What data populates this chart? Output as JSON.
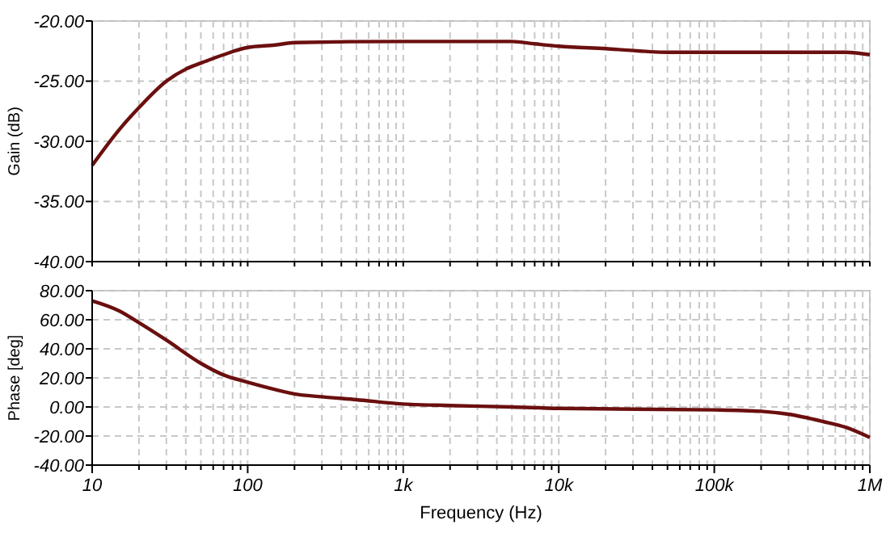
{
  "chart_data": [
    {
      "type": "line",
      "ylabel": "Gain (dB)",
      "log": "x",
      "grid": true,
      "tick_labels": "y",
      "xlim": [
        10,
        1000000
      ],
      "xticks": [
        {
          "value": 10,
          "label": null
        },
        {
          "value": 20,
          "label": null
        },
        {
          "value": 30,
          "label": null
        },
        {
          "value": 40,
          "label": null
        },
        {
          "value": 50,
          "label": null
        },
        {
          "value": 60,
          "label": null
        },
        {
          "value": 70,
          "label": null
        },
        {
          "value": 80,
          "label": null
        },
        {
          "value": 90,
          "label": null
        },
        {
          "value": 100,
          "label": null
        },
        {
          "value": 200,
          "label": null
        },
        {
          "value": 300,
          "label": null
        },
        {
          "value": 400,
          "label": null
        },
        {
          "value": 500,
          "label": null
        },
        {
          "value": 600,
          "label": null
        },
        {
          "value": 700,
          "label": null
        },
        {
          "value": 800,
          "label": null
        },
        {
          "value": 900,
          "label": null
        },
        {
          "value": 1000,
          "label": null
        },
        {
          "value": 2000,
          "label": null
        },
        {
          "value": 3000,
          "label": null
        },
        {
          "value": 4000,
          "label": null
        },
        {
          "value": 5000,
          "label": null
        },
        {
          "value": 6000,
          "label": null
        },
        {
          "value": 7000,
          "label": null
        },
        {
          "value": 8000,
          "label": null
        },
        {
          "value": 9000,
          "label": null
        },
        {
          "value": 10000,
          "label": null
        },
        {
          "value": 20000,
          "label": null
        },
        {
          "value": 30000,
          "label": null
        },
        {
          "value": 40000,
          "label": null
        },
        {
          "value": 50000,
          "label": null
        },
        {
          "value": 60000,
          "label": null
        },
        {
          "value": 70000,
          "label": null
        },
        {
          "value": 80000,
          "label": null
        },
        {
          "value": 90000,
          "label": null
        },
        {
          "value": 100000,
          "label": null
        },
        {
          "value": 200000,
          "label": null
        },
        {
          "value": 300000,
          "label": null
        },
        {
          "value": 400000,
          "label": null
        },
        {
          "value": 500000,
          "label": null
        },
        {
          "value": 600000,
          "label": null
        },
        {
          "value": 700000,
          "label": null
        },
        {
          "value": 800000,
          "label": null
        },
        {
          "value": 900000,
          "label": null
        },
        {
          "value": 1000000,
          "label": null
        }
      ],
      "ylim": [
        -40,
        -20
      ],
      "yticks": [
        {
          "value": -40,
          "label": "-40.00"
        },
        {
          "value": -35,
          "label": "-35.00"
        },
        {
          "value": -30,
          "label": "-30.00"
        },
        {
          "value": -25,
          "label": "-25.00"
        },
        {
          "value": -20,
          "label": "-20.00"
        }
      ],
      "x": [
        10,
        15,
        20,
        30,
        40,
        50,
        70,
        100,
        150,
        200,
        1000,
        5000,
        7000,
        10000,
        20000,
        50000,
        200000,
        700000,
        1000000
      ],
      "series": [
        {
          "color": "#6b0f0f",
          "values": [
            -32,
            -29,
            -27.2,
            -25,
            -24,
            -23.5,
            -22.8,
            -22.2,
            -22,
            -21.8,
            -21.7,
            -21.7,
            -21.9,
            -22.1,
            -22.3,
            -22.6,
            -22.6,
            -22.6,
            -22.8
          ]
        }
      ]
    },
    {
      "type": "line",
      "ylabel": "Phase [deg]",
      "xlabel": "Frequency (Hz)",
      "log": "x",
      "grid": true,
      "xlim": [
        10,
        1000000
      ],
      "xticks": [
        10,
        {
          "value": 20,
          "label": null
        },
        {
          "value": 30,
          "label": null
        },
        {
          "value": 40,
          "label": null
        },
        {
          "value": 50,
          "label": null
        },
        {
          "value": 60,
          "label": null
        },
        {
          "value": 70,
          "label": null
        },
        {
          "value": 80,
          "label": null
        },
        {
          "value": 90,
          "label": null
        },
        100,
        {
          "value": 200,
          "label": null
        },
        {
          "value": 300,
          "label": null
        },
        {
          "value": 400,
          "label": null
        },
        {
          "value": 500,
          "label": null
        },
        {
          "value": 600,
          "label": null
        },
        {
          "value": 700,
          "label": null
        },
        {
          "value": 800,
          "label": null
        },
        {
          "value": 900,
          "label": null
        },
        {
          "value": 1000,
          "label": "1k"
        },
        {
          "value": 2000,
          "label": null
        },
        {
          "value": 3000,
          "label": null
        },
        {
          "value": 4000,
          "label": null
        },
        {
          "value": 5000,
          "label": null
        },
        {
          "value": 6000,
          "label": null
        },
        {
          "value": 7000,
          "label": null
        },
        {
          "value": 8000,
          "label": null
        },
        {
          "value": 9000,
          "label": null
        },
        {
          "value": 10000,
          "label": "10k"
        },
        {
          "value": 20000,
          "label": null
        },
        {
          "value": 30000,
          "label": null
        },
        {
          "value": 40000,
          "label": null
        },
        {
          "value": 50000,
          "label": null
        },
        {
          "value": 60000,
          "label": null
        },
        {
          "value": 70000,
          "label": null
        },
        {
          "value": 80000,
          "label": null
        },
        {
          "value": 90000,
          "label": null
        },
        {
          "value": 100000,
          "label": "100k"
        },
        {
          "value": 200000,
          "label": null
        },
        {
          "value": 300000,
          "label": null
        },
        {
          "value": 400000,
          "label": null
        },
        {
          "value": 500000,
          "label": null
        },
        {
          "value": 600000,
          "label": null
        },
        {
          "value": 700000,
          "label": null
        },
        {
          "value": 800000,
          "label": null
        },
        {
          "value": 900000,
          "label": null
        },
        {
          "value": 1000000,
          "label": "1M"
        }
      ],
      "ylim": [
        -40,
        80
      ],
      "yticks": [
        {
          "value": -40,
          "label": "-40.00"
        },
        {
          "value": -20,
          "label": "-20.00"
        },
        {
          "value": 0,
          "label": "0.00"
        },
        {
          "value": 20,
          "label": "20.00"
        },
        {
          "value": 40,
          "label": "40.00"
        },
        {
          "value": 60,
          "label": "60.00"
        },
        {
          "value": 80,
          "label": "80.00"
        }
      ],
      "x": [
        10,
        15,
        20,
        30,
        50,
        70,
        100,
        150,
        200,
        300,
        500,
        1000,
        2000,
        5000,
        10000,
        100000,
        200000,
        300000,
        500000,
        700000,
        1000000
      ],
      "series": [
        {
          "color": "#6b0f0f",
          "values": [
            73,
            66,
            58,
            46,
            30,
            22,
            17,
            12,
            9,
            7,
            5,
            2,
            1,
            0,
            -1,
            -2,
            -3,
            -5,
            -10,
            -14,
            -21
          ]
        }
      ]
    }
  ]
}
